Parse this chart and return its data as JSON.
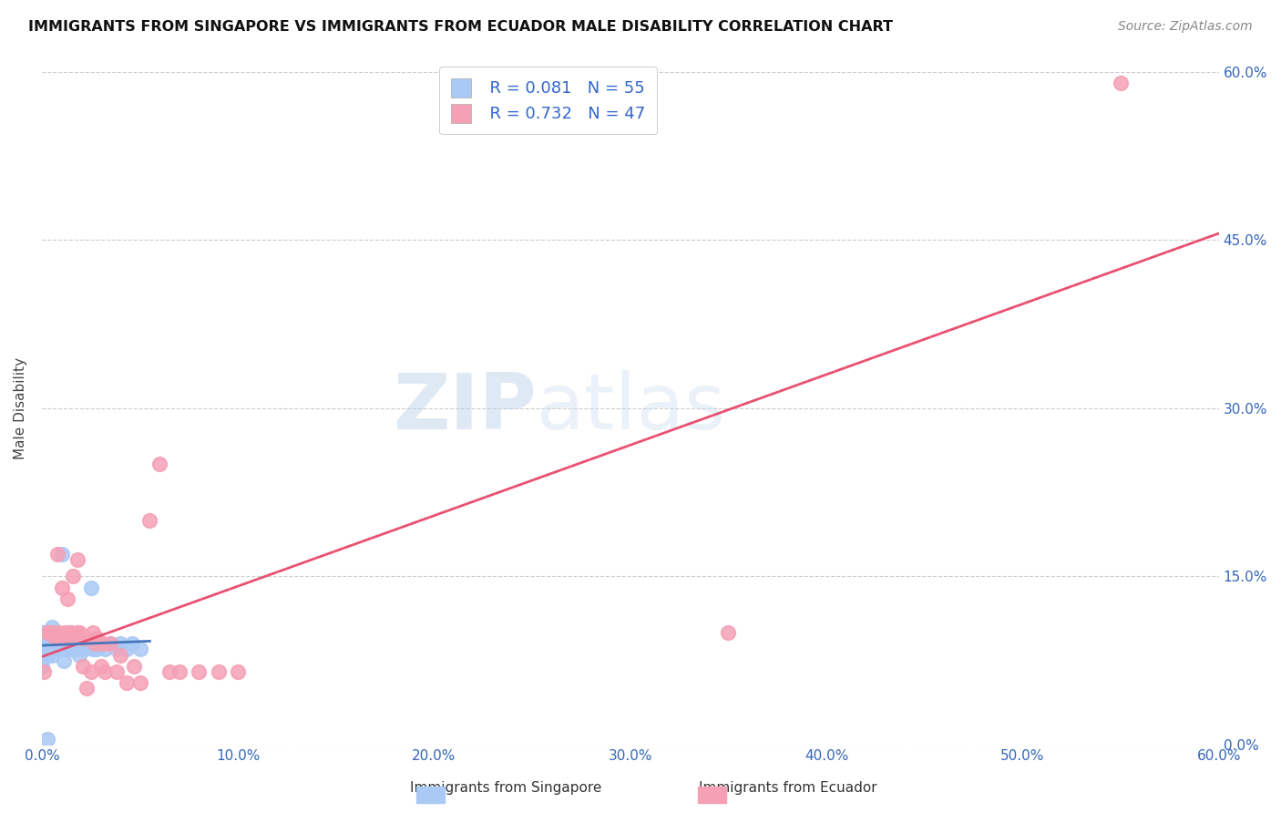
{
  "title": "IMMIGRANTS FROM SINGAPORE VS IMMIGRANTS FROM ECUADOR MALE DISABILITY CORRELATION CHART",
  "source": "Source: ZipAtlas.com",
  "ylabel": "Male Disability",
  "xlim": [
    0.0,
    0.6
  ],
  "ylim": [
    0.0,
    0.6
  ],
  "x_ticks": [
    0.0,
    0.1,
    0.2,
    0.3,
    0.4,
    0.5,
    0.6
  ],
  "y_ticks": [
    0.0,
    0.15,
    0.3,
    0.45,
    0.6
  ],
  "x_tick_labels": [
    "0.0%",
    "10.0%",
    "20.0%",
    "30.0%",
    "40.0%",
    "50.0%",
    "60.0%"
  ],
  "y_tick_labels_right": [
    "0.0%",
    "15.0%",
    "30.0%",
    "45.0%",
    "60.0%"
  ],
  "legend_r1": "R = 0.081",
  "legend_n1": "N = 55",
  "legend_r2": "R = 0.732",
  "legend_n2": "N = 47",
  "singapore_color": "#aac9f5",
  "ecuador_color": "#f5a0b5",
  "singapore_line_color": "#4477bb",
  "ecuador_line_color": "#ee4466",
  "singapore_dashed_color": "#88aedd",
  "watermark_zip": "ZIP",
  "watermark_atlas": "atlas",
  "sg_x": [
    0.0,
    0.0,
    0.0,
    0.0,
    0.0,
    0.0,
    0.0,
    0.001,
    0.001,
    0.001,
    0.001,
    0.001,
    0.002,
    0.002,
    0.002,
    0.003,
    0.003,
    0.003,
    0.004,
    0.004,
    0.005,
    0.005,
    0.005,
    0.006,
    0.006,
    0.007,
    0.008,
    0.009,
    0.01,
    0.01,
    0.011,
    0.012,
    0.013,
    0.014,
    0.015,
    0.016,
    0.017,
    0.018,
    0.019,
    0.02,
    0.022,
    0.023,
    0.025,
    0.026,
    0.027,
    0.028,
    0.03,
    0.032,
    0.035,
    0.038,
    0.04,
    0.043,
    0.046,
    0.05,
    0.003
  ],
  "sg_y": [
    0.09,
    0.1,
    0.095,
    0.08,
    0.075,
    0.085,
    0.07,
    0.1,
    0.08,
    0.09,
    0.09,
    0.095,
    0.09,
    0.095,
    0.085,
    0.1,
    0.09,
    0.08,
    0.1,
    0.085,
    0.105,
    0.09,
    0.08,
    0.095,
    0.09,
    0.09,
    0.095,
    0.085,
    0.095,
    0.17,
    0.075,
    0.085,
    0.095,
    0.09,
    0.085,
    0.09,
    0.085,
    0.095,
    0.08,
    0.09,
    0.085,
    0.09,
    0.14,
    0.085,
    0.09,
    0.085,
    0.09,
    0.085,
    0.09,
    0.085,
    0.09,
    0.085,
    0.09,
    0.085,
    0.005
  ],
  "ec_x": [
    0.001,
    0.003,
    0.004,
    0.005,
    0.006,
    0.007,
    0.008,
    0.009,
    0.01,
    0.01,
    0.011,
    0.012,
    0.013,
    0.014,
    0.015,
    0.016,
    0.017,
    0.018,
    0.018,
    0.019,
    0.02,
    0.021,
    0.022,
    0.023,
    0.025,
    0.026,
    0.027,
    0.028,
    0.03,
    0.031,
    0.032,
    0.035,
    0.038,
    0.04,
    0.043,
    0.047,
    0.05,
    0.055,
    0.06,
    0.065,
    0.07,
    0.08,
    0.09,
    0.1,
    0.35,
    0.55,
    0.008
  ],
  "ec_y": [
    0.065,
    0.1,
    0.1,
    0.1,
    0.1,
    0.095,
    0.095,
    0.1,
    0.095,
    0.14,
    0.095,
    0.1,
    0.13,
    0.1,
    0.1,
    0.15,
    0.095,
    0.1,
    0.165,
    0.1,
    0.095,
    0.07,
    0.095,
    0.05,
    0.065,
    0.1,
    0.09,
    0.095,
    0.07,
    0.09,
    0.065,
    0.09,
    0.065,
    0.08,
    0.055,
    0.07,
    0.055,
    0.2,
    0.25,
    0.065,
    0.065,
    0.065,
    0.065,
    0.065,
    0.1,
    0.59,
    0.17
  ]
}
